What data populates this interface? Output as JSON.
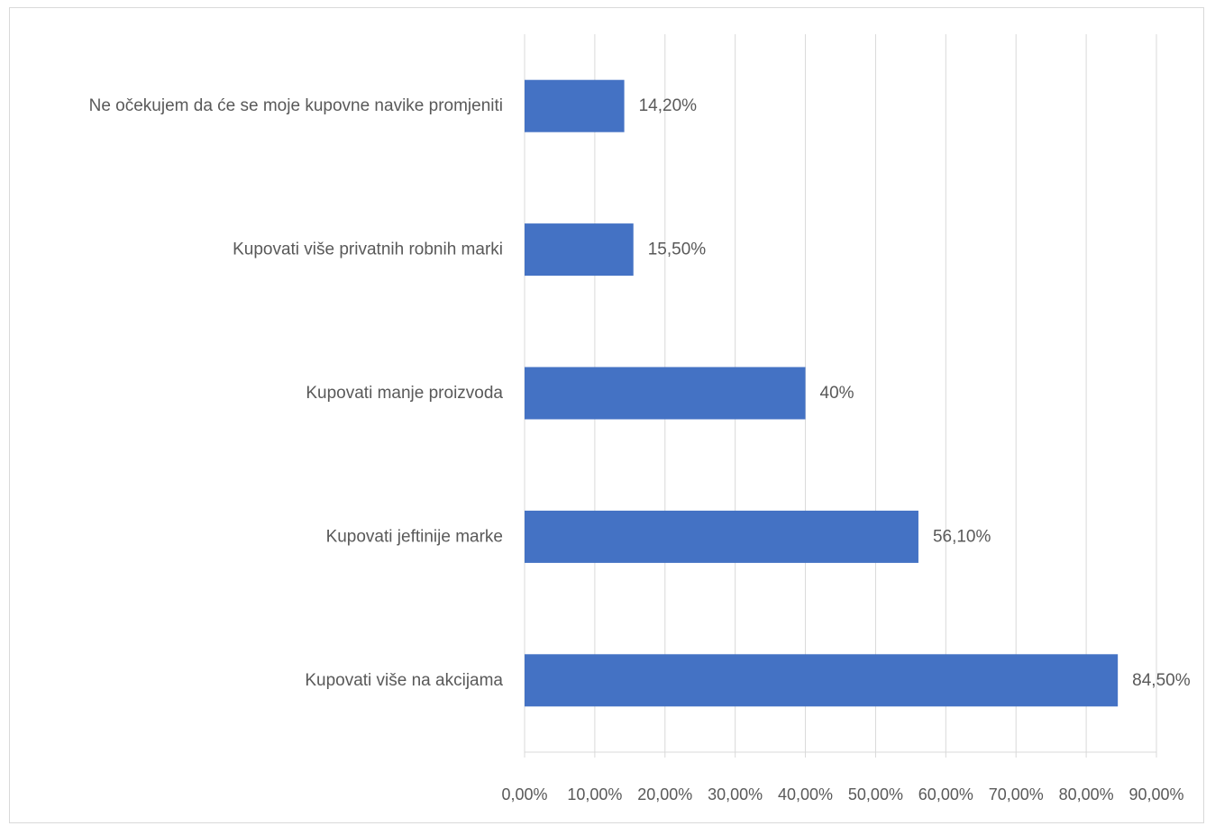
{
  "chart_data": {
    "type": "bar",
    "orientation": "horizontal",
    "categories": [
      "Ne očekujem da će se moje kupovne navike promjeniti",
      "Kupovati više privatnih robnih marki",
      "Kupovati manje proizvoda",
      "Kupovati jeftinije marke",
      "Kupovati više na akcijama"
    ],
    "values": [
      14.2,
      15.5,
      40,
      56.1,
      84.5
    ],
    "data_labels": [
      "14,20%",
      "15,50%",
      "40%",
      "56,10%",
      "84,50%"
    ],
    "xlim": [
      0,
      90
    ],
    "x_ticks": [
      0,
      10,
      20,
      30,
      40,
      50,
      60,
      70,
      80,
      90
    ],
    "x_tick_labels": [
      "0,00%",
      "10,00%",
      "20,00%",
      "30,00%",
      "40,00%",
      "50,00%",
      "60,00%",
      "70,00%",
      "80,00%",
      "90,00%"
    ],
    "grid": "vertical",
    "legend": "none",
    "bar_color": "#4472c4",
    "title": "",
    "xlabel": "",
    "ylabel": ""
  }
}
